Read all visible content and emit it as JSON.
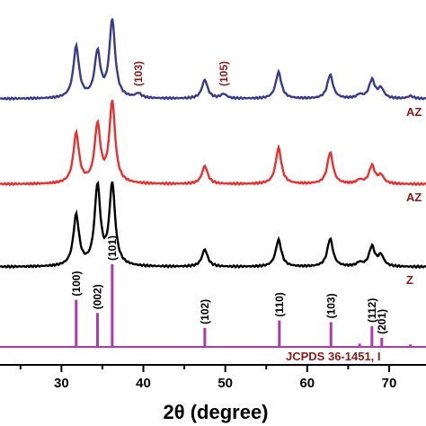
{
  "chart_data": {
    "type": "line",
    "xlabel": "2θ (degree)",
    "xlim": [
      22.5,
      74.5
    ],
    "x_ticks": [
      30,
      40,
      50,
      60,
      70
    ],
    "grid": false,
    "series": [
      {
        "name": "AZ",
        "color": "#3a3a8c",
        "peaks": [
          {
            "x": 31.8,
            "h": 0.58
          },
          {
            "x": 34.4,
            "h": 0.51
          },
          {
            "x": 36.2,
            "h": 0.88
          },
          {
            "x": 39.4,
            "h": 0.05
          },
          {
            "x": 47.5,
            "h": 0.21
          },
          {
            "x": 49.8,
            "h": 0.05
          },
          {
            "x": 56.5,
            "h": 0.3
          },
          {
            "x": 62.8,
            "h": 0.27
          },
          {
            "x": 66.4,
            "h": 0.04
          },
          {
            "x": 67.9,
            "h": 0.21
          },
          {
            "x": 69.0,
            "h": 0.11
          },
          {
            "x": 72.6,
            "h": 0.03
          }
        ],
        "annotations": [
          "(103)",
          "(105)"
        ]
      },
      {
        "name": "AZ",
        "color": "#e83030",
        "peaks": [
          {
            "x": 31.8,
            "h": 0.55
          },
          {
            "x": 34.4,
            "h": 0.64
          },
          {
            "x": 36.2,
            "h": 0.9
          },
          {
            "x": 47.5,
            "h": 0.2
          },
          {
            "x": 56.5,
            "h": 0.4
          },
          {
            "x": 62.8,
            "h": 0.35
          },
          {
            "x": 66.4,
            "h": 0.04
          },
          {
            "x": 67.9,
            "h": 0.2
          },
          {
            "x": 69.0,
            "h": 0.09
          }
        ]
      },
      {
        "name": "Z",
        "color": "#000000",
        "peaks": [
          {
            "x": 31.8,
            "h": 0.56
          },
          {
            "x": 34.4,
            "h": 0.88
          },
          {
            "x": 36.2,
            "h": 0.9
          },
          {
            "x": 47.5,
            "h": 0.19
          },
          {
            "x": 56.5,
            "h": 0.3
          },
          {
            "x": 62.8,
            "h": 0.31
          },
          {
            "x": 66.4,
            "h": 0.04
          },
          {
            "x": 67.9,
            "h": 0.22
          },
          {
            "x": 69.0,
            "h": 0.12
          }
        ]
      }
    ],
    "reference": {
      "name": "JCPDS 36-1451, I",
      "color": "#b03aa8",
      "lines": [
        {
          "x": 31.8,
          "h": 0.57,
          "label": "(100)"
        },
        {
          "x": 34.4,
          "h": 0.41,
          "label": "(002)"
        },
        {
          "x": 36.2,
          "h": 1.0,
          "label": "(101)"
        },
        {
          "x": 47.5,
          "h": 0.23,
          "label": "(102)"
        },
        {
          "x": 56.6,
          "h": 0.32,
          "label": "(110)"
        },
        {
          "x": 62.9,
          "h": 0.3,
          "label": "(103)"
        },
        {
          "x": 66.4,
          "h": 0.04,
          "label": ""
        },
        {
          "x": 67.9,
          "h": 0.25,
          "label": "(112)"
        },
        {
          "x": 69.1,
          "h": 0.11,
          "label": "(201)"
        },
        {
          "x": 72.6,
          "h": 0.03,
          "label": ""
        }
      ]
    }
  }
}
